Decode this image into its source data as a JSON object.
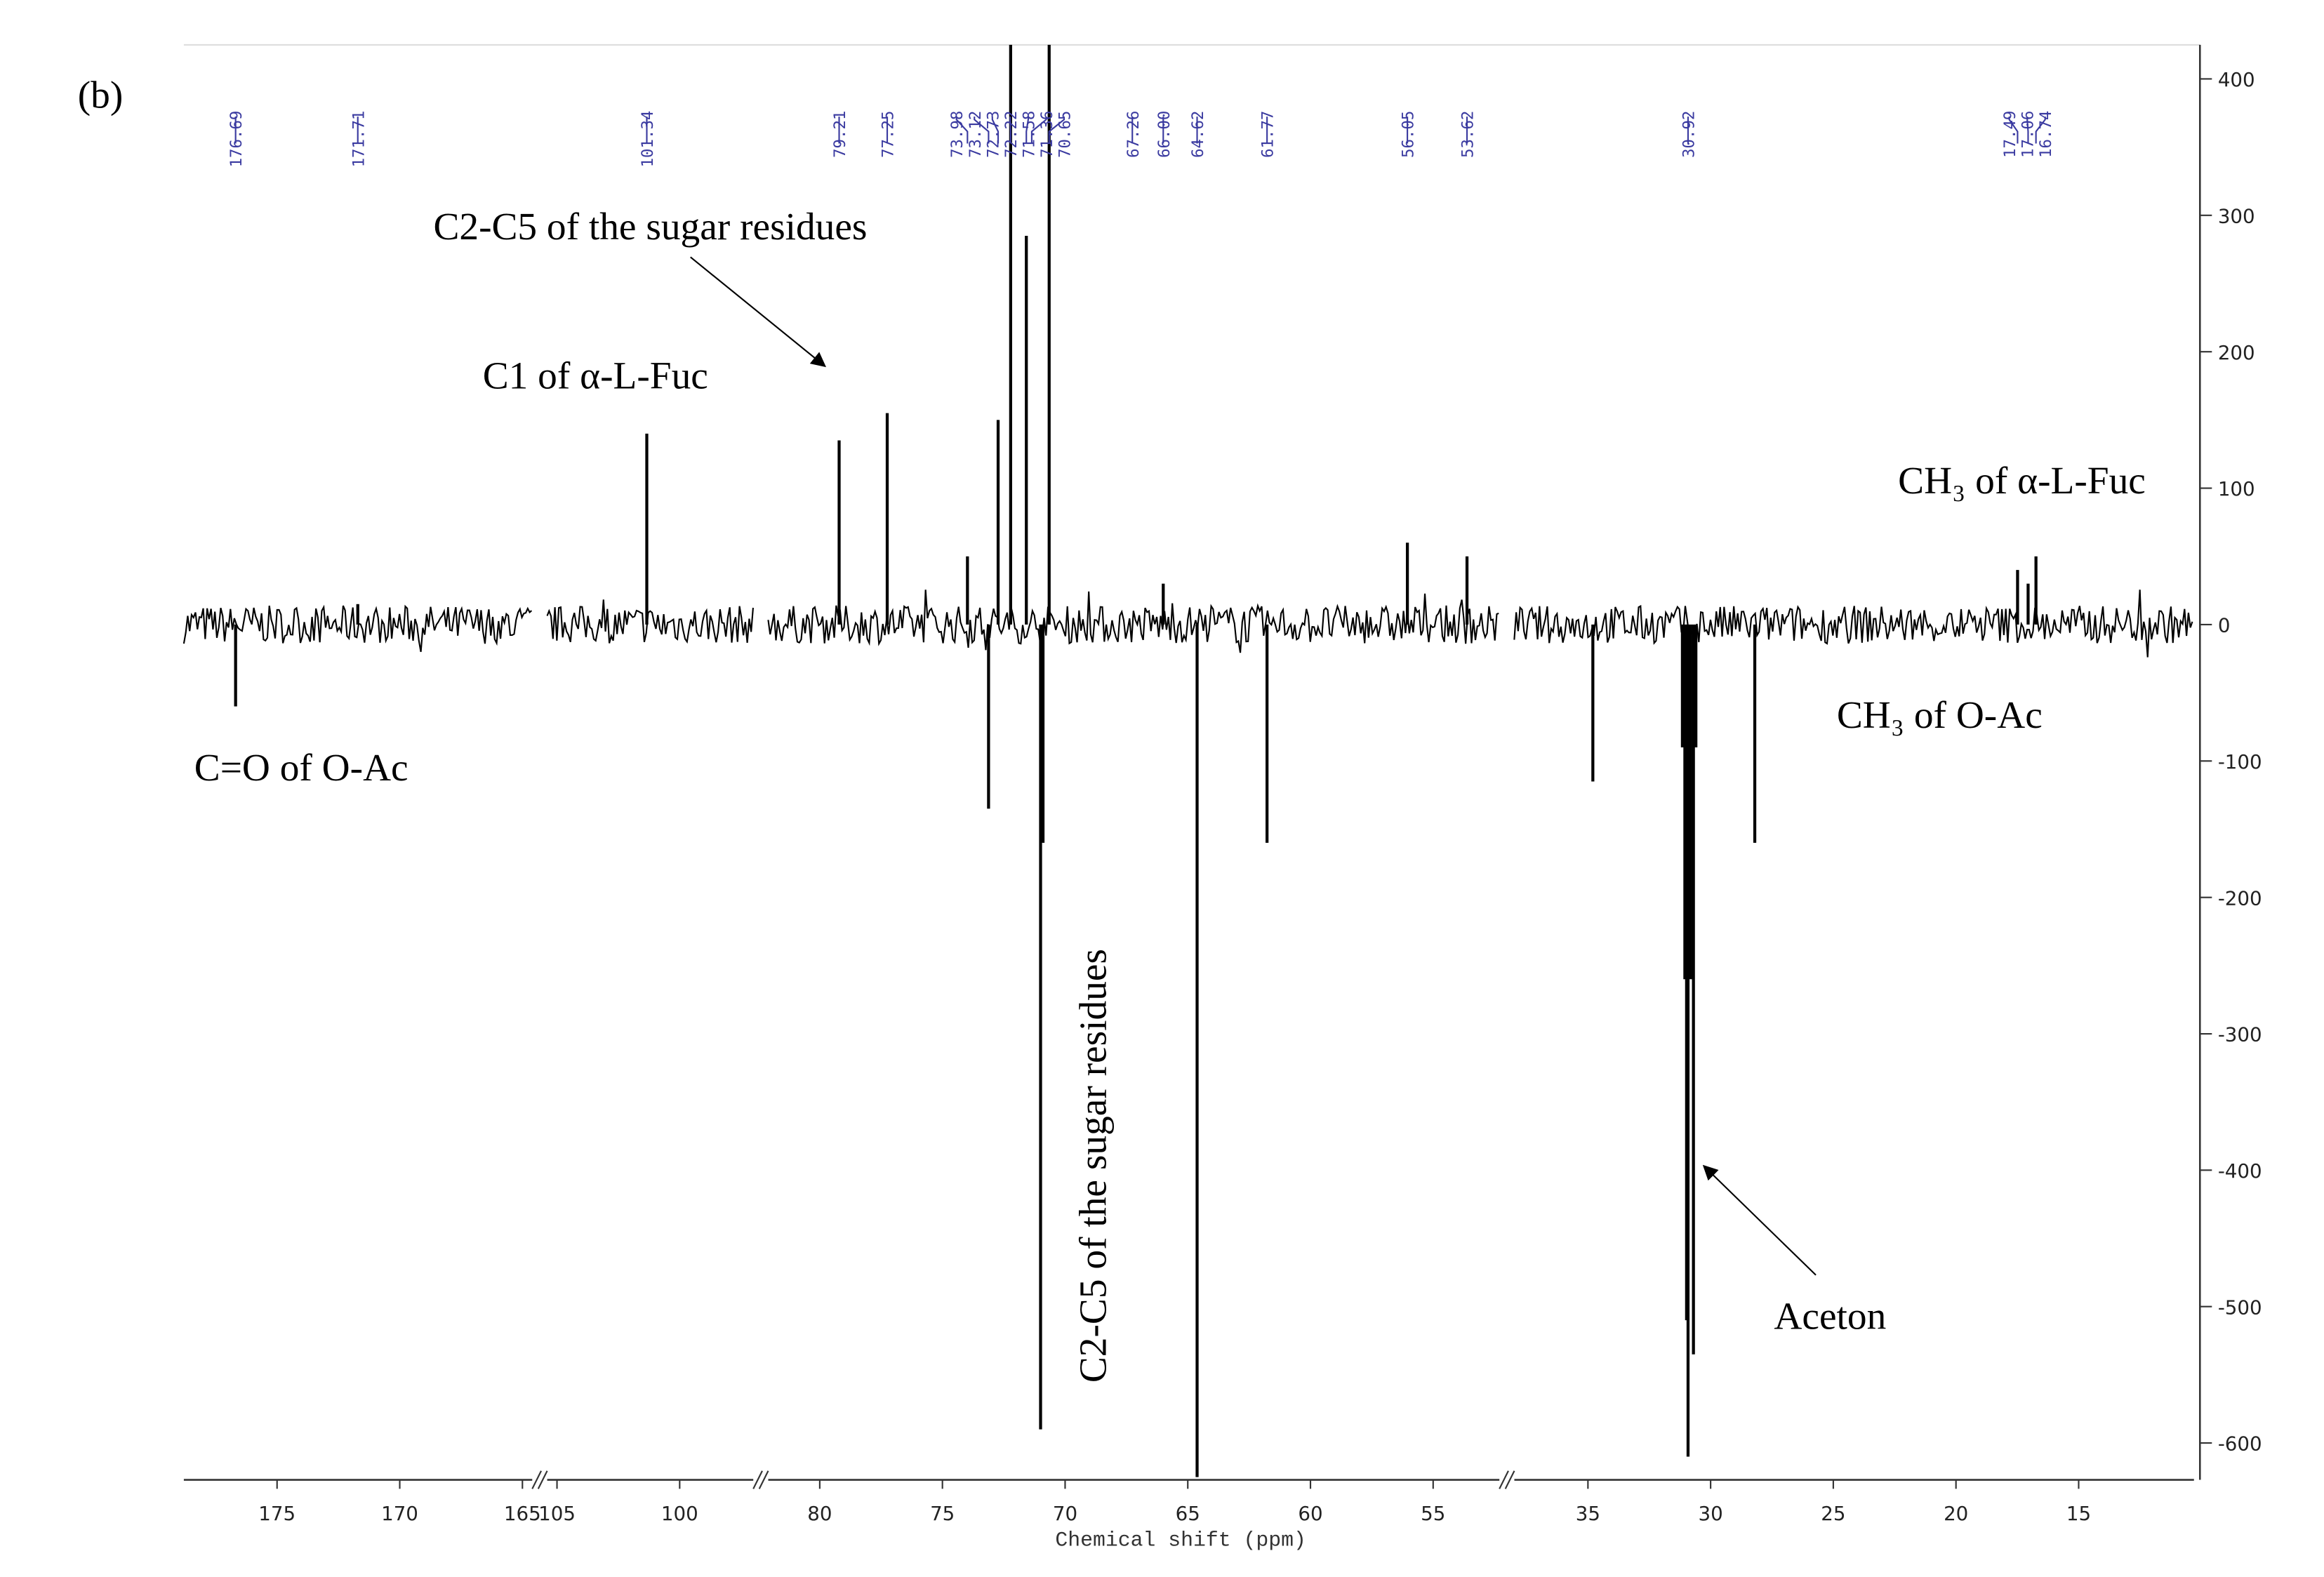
{
  "chart_data": {
    "type": "spectrum",
    "panel_label": "(b)",
    "x_label": "Chemical shift (ppm)",
    "x_segments": [
      {
        "xlim": [
          178.8,
          164.6
        ],
        "xticks": [
          175,
          170,
          165
        ]
      },
      {
        "xlim": [
          105.4,
          97.0
        ],
        "xticks": [
          105,
          100
        ]
      },
      {
        "xlim": [
          82.1,
          52.3
        ],
        "xticks": [
          80,
          75,
          70,
          65,
          60,
          55
        ]
      },
      {
        "xlim": [
          38.0,
          10.3
        ],
        "xticks": [
          35,
          30,
          25,
          20,
          15
        ]
      }
    ],
    "ylim": [
      -627,
      425
    ],
    "yticks": [
      -600,
      -500,
      -400,
      -300,
      -200,
      -100,
      0,
      100,
      200,
      300,
      400
    ],
    "color": "#000000",
    "label_color": "#3a3aa0",
    "x": [
      176.69,
      171.71,
      101.34,
      79.21,
      77.25,
      73.98,
      73.12,
      72.73,
      72.22,
      71.58,
      71.0,
      70.9,
      70.65,
      66.0,
      64.62,
      61.77,
      56.05,
      53.62,
      34.8,
      31.15,
      31.05,
      30.98,
      30.92,
      30.82,
      30.7,
      30.6,
      28.2,
      17.49,
      17.06,
      16.74
    ],
    "values": [
      -60,
      15,
      140,
      135,
      155,
      50,
      -135,
      150,
      430,
      285,
      -590,
      -160,
      430,
      30,
      -625,
      -160,
      60,
      50,
      -115,
      -90,
      -260,
      -510,
      -610,
      -260,
      -535,
      -90,
      -160,
      40,
      30,
      50
    ],
    "peak_labels": [
      {
        "value": 176.69,
        "label": "176.69"
      },
      {
        "value": 171.71,
        "label": "171.71"
      },
      {
        "value": 101.34,
        "label": "101.34"
      },
      {
        "value": 79.21,
        "label": "79.21"
      },
      {
        "value": 77.25,
        "label": "77.25"
      },
      {
        "value": 73.98,
        "label": "73.98"
      },
      {
        "value": 73.12,
        "label": "73.12"
      },
      {
        "value": 72.73,
        "label": "72.73"
      },
      {
        "value": 72.22,
        "label": "72.22"
      },
      {
        "value": 71.58,
        "label": "71.58"
      },
      {
        "value": 71.36,
        "label": "71.36"
      },
      {
        "value": 70.65,
        "label": "70.65"
      },
      {
        "value": 67.26,
        "label": "67.26"
      },
      {
        "value": 66,
        "label": "66.00"
      },
      {
        "value": 64.62,
        "label": "64.62"
      },
      {
        "value": 61.77,
        "label": "61.77"
      },
      {
        "value": 56.05,
        "label": "56.05"
      },
      {
        "value": 53.62,
        "label": "53.62"
      },
      {
        "value": 30.92,
        "label": "30.92"
      },
      {
        "value": 17.49,
        "label": "17.49"
      },
      {
        "value": 17.06,
        "label": "17.06"
      },
      {
        "value": 16.74,
        "label": "16.74"
      }
    ],
    "annotations": [
      "C2-C5  of the sugar residues",
      "C1 of α-L-Fuc",
      "CH₃ of α-L-Fuc",
      "C=O of O-Ac",
      "CH₃ of O-Ac",
      "C2-C5  of the sugar residues",
      "Aceton"
    ]
  }
}
